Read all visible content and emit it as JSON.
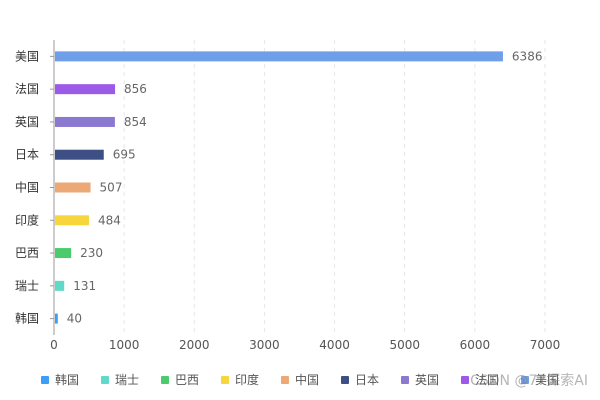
{
  "chart_data": {
    "type": "bar",
    "orientation": "horizontal",
    "categories": [
      "韩国",
      "瑞士",
      "巴西",
      "印度",
      "中国",
      "日本",
      "英国",
      "法国",
      "美国"
    ],
    "values": [
      40,
      131,
      230,
      484,
      507,
      695,
      854,
      856,
      6386
    ],
    "colors": [
      "#3ba0f5",
      "#5fdac8",
      "#4ccb6c",
      "#f6d63a",
      "#eca875",
      "#3e4f86",
      "#8b78d0",
      "#9b5ae8",
      "#6f9fe8"
    ],
    "xlim": [
      0,
      7000
    ],
    "xticks": [
      0,
      1000,
      2000,
      3000,
      4000,
      5000,
      6000,
      7000
    ],
    "grid": true,
    "legend_position": "bottom",
    "legend": [
      "韩国",
      "瑞士",
      "巴西",
      "印度",
      "中国",
      "日本",
      "英国",
      "法国",
      "美国"
    ]
  },
  "watermark": "CSDN @77探索AI"
}
